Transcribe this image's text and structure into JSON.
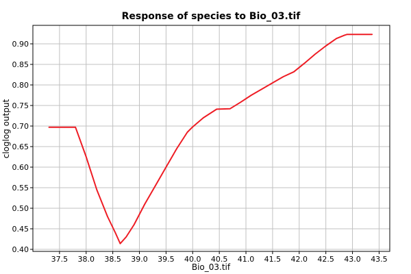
{
  "chart_data": {
    "type": "line",
    "title": "Response of species to Bio_03.tif",
    "xlabel": "Bio_03.tif",
    "ylabel": "cloglog output",
    "xlim": [
      37.0,
      43.7
    ],
    "ylim": [
      0.395,
      0.945
    ],
    "x_ticks": [
      "37.5",
      "38.0",
      "38.5",
      "39.0",
      "39.5",
      "40.0",
      "40.5",
      "41.0",
      "41.5",
      "42.0",
      "42.5",
      "43.0",
      "43.5"
    ],
    "y_ticks": [
      "0.40",
      "0.45",
      "0.50",
      "0.55",
      "0.60",
      "0.65",
      "0.70",
      "0.75",
      "0.80",
      "0.85",
      "0.90"
    ],
    "grid": true,
    "line_color": "#ee1c24",
    "series": [
      {
        "x": [
          37.3,
          37.6,
          37.8,
          38.0,
          38.2,
          38.4,
          38.55,
          38.64,
          38.75,
          38.9,
          39.1,
          39.3,
          39.5,
          39.7,
          39.9,
          40.0,
          40.2,
          40.45,
          40.7,
          40.9,
          41.1,
          41.3,
          41.5,
          41.7,
          41.9,
          42.1,
          42.3,
          42.5,
          42.7,
          42.85,
          42.9,
          43.37
        ],
        "y": [
          0.697,
          0.697,
          0.697,
          0.625,
          0.545,
          0.48,
          0.44,
          0.414,
          0.43,
          0.46,
          0.51,
          0.555,
          0.6,
          0.645,
          0.685,
          0.698,
          0.72,
          0.741,
          0.742,
          0.758,
          0.775,
          0.79,
          0.805,
          0.82,
          0.832,
          0.853,
          0.875,
          0.895,
          0.913,
          0.921,
          0.923,
          0.923
        ]
      }
    ]
  }
}
